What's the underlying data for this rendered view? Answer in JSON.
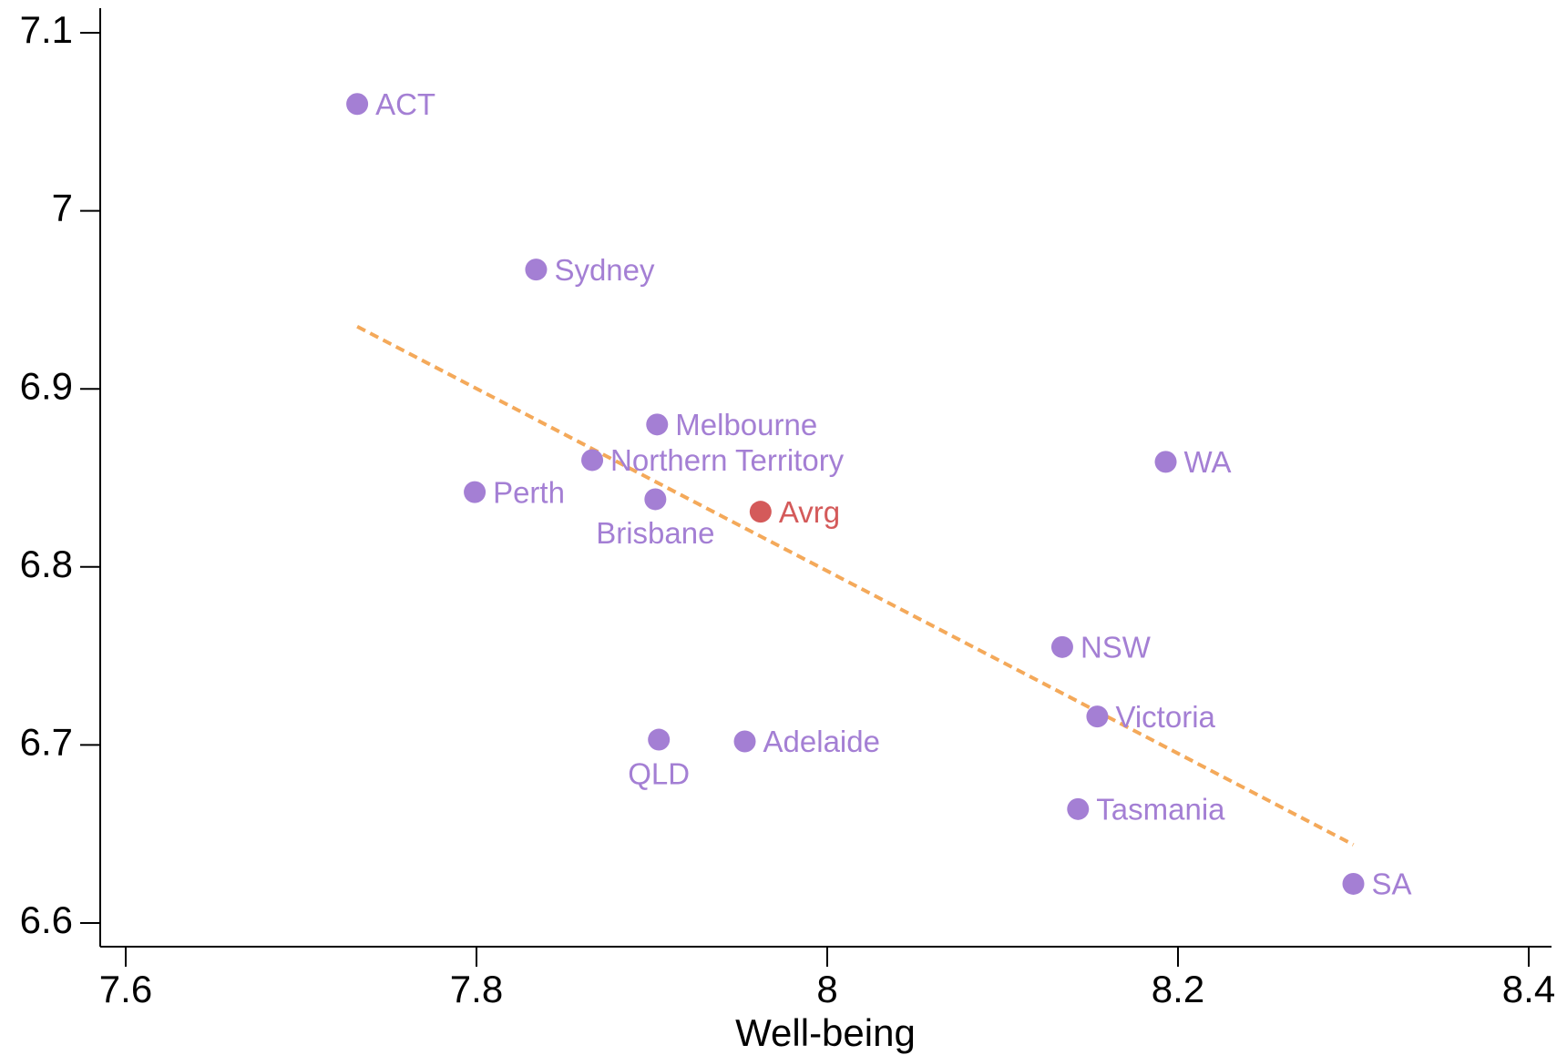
{
  "chart_data": {
    "type": "scatter",
    "x_label": "Well-being",
    "xlim": [
      7.6,
      8.4
    ],
    "xticks": [
      7.6,
      7.8,
      8,
      8.2,
      8.4
    ],
    "ylim": [
      6.6,
      7.1
    ],
    "yticks": [
      6.6,
      6.7,
      6.8,
      6.9,
      7,
      7.1
    ],
    "series": [
      {
        "labels": [
          "ACT",
          "Sydney",
          "Melbourne",
          "Northern Territory",
          "Perth",
          "Brisbane",
          "Avrg",
          "WA",
          "NSW",
          "Victoria",
          "QLD",
          "Adelaide",
          "Tasmania",
          "SA"
        ],
        "x": [
          7.732,
          7.834,
          7.903,
          7.866,
          7.799,
          7.902,
          7.962,
          8.193,
          8.134,
          8.154,
          7.904,
          7.953,
          8.143,
          8.3
        ],
        "values": [
          7.06,
          6.967,
          6.88,
          6.86,
          6.842,
          6.838,
          6.831,
          6.859,
          6.755,
          6.716,
          6.703,
          6.702,
          6.664,
          6.622
        ],
        "colors": [
          "#a47fd4",
          "#a47fd4",
          "#a47fd4",
          "#a47fd4",
          "#a47fd4",
          "#a47fd4",
          "#d45a5a",
          "#a47fd4",
          "#a47fd4",
          "#a47fd4",
          "#a47fd4",
          "#a47fd4",
          "#a47fd4",
          "#a47fd4"
        ]
      }
    ],
    "trendline": {
      "x": [
        7.732,
        8.3
      ],
      "values": [
        6.935,
        6.644
      ],
      "color": "#f4a95a"
    }
  }
}
